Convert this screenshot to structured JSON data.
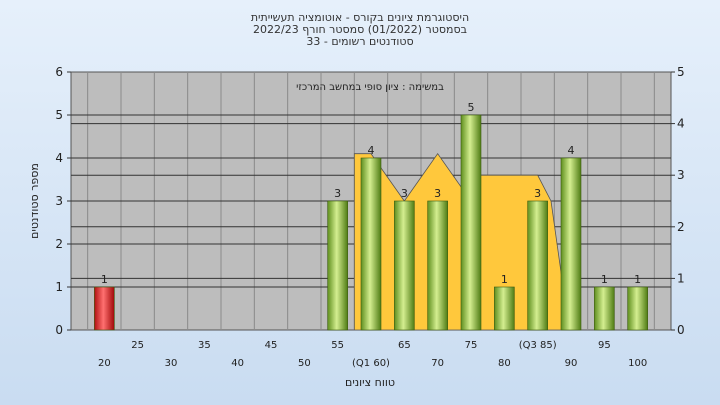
{
  "chart_data": {
    "type": "bar",
    "title_lines": [
      "היסטוגרמת ציונים בקורס - אוטומציה תעשייתית",
      "בסמסטר  (01/2022)  סמסטר חורף 2022/23",
      "סטודנטים רשומים - 33"
    ],
    "annotation": "במשימה : ציון סופי במחשב המרכזי",
    "xlabel": "טווח ציונים",
    "ylabel": "מספר סטודנטים",
    "ylim": [
      0,
      6
    ],
    "y2lim": [
      0,
      5
    ],
    "yticks": [
      0,
      1,
      2,
      3,
      4,
      5,
      6
    ],
    "y2ticks": [
      0,
      1,
      2,
      3,
      4,
      5
    ],
    "x_labels_lower": [
      "20",
      "30",
      "40",
      "50",
      "(Q1 60)",
      "70",
      "80",
      "90",
      "100"
    ],
    "x_labels_upper": [
      "25",
      "35",
      "45",
      "55",
      "65",
      "75",
      "(Q3 85)",
      "95"
    ],
    "categories": [
      20,
      25,
      30,
      35,
      40,
      45,
      50,
      55,
      60,
      65,
      70,
      75,
      80,
      85,
      90,
      95,
      100
    ],
    "values": [
      1,
      0,
      0,
      0,
      0,
      0,
      0,
      3,
      4,
      3,
      3,
      5,
      1,
      3,
      4,
      1,
      1
    ],
    "highlight_color": "#e02020",
    "bar_color": "#8ec63f",
    "area_color": "#ffc83c",
    "area_series": [
      {
        "x": 57.5,
        "y": 0
      },
      {
        "x": 57.5,
        "y": 4.1
      },
      {
        "x": 60,
        "y": 4.1
      },
      {
        "x": 65,
        "y": 3.0
      },
      {
        "x": 70,
        "y": 4.1
      },
      {
        "x": 75,
        "y": 3.0
      },
      {
        "x": 75,
        "y": 3.6
      },
      {
        "x": 85,
        "y": 3.6
      },
      {
        "x": 87,
        "y": 3.0
      },
      {
        "x": 89,
        "y": 0.8
      },
      {
        "x": 89,
        "y": 0
      }
    ],
    "grid": true
  }
}
